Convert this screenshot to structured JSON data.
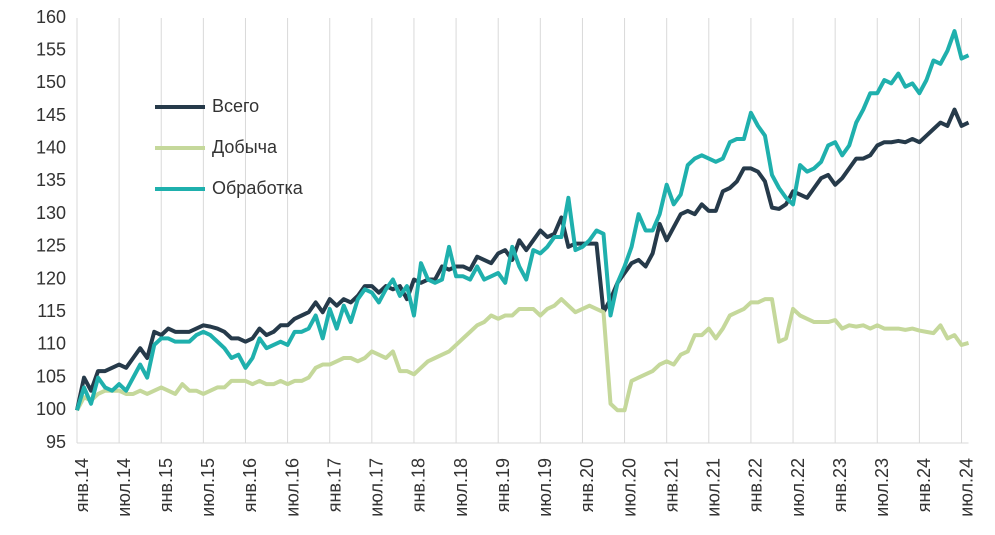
{
  "chart_data": {
    "type": "line",
    "categories": [
      "янв.14",
      null,
      null,
      null,
      null,
      null,
      "июл.14",
      null,
      null,
      null,
      null,
      null,
      "янв.15",
      null,
      null,
      null,
      null,
      null,
      "июл.15",
      null,
      null,
      null,
      null,
      null,
      "янв.16",
      null,
      null,
      null,
      null,
      null,
      "июл.16",
      null,
      null,
      null,
      null,
      null,
      "янв.17",
      null,
      null,
      null,
      null,
      null,
      "июл.17",
      null,
      null,
      null,
      null,
      null,
      "янв.18",
      null,
      null,
      null,
      null,
      null,
      "июл.18",
      null,
      null,
      null,
      null,
      null,
      "янв.19",
      null,
      null,
      null,
      null,
      null,
      "июл.19",
      null,
      null,
      null,
      null,
      null,
      "янв.20",
      null,
      null,
      null,
      null,
      null,
      "июл.20",
      null,
      null,
      null,
      null,
      null,
      "янв.21",
      null,
      null,
      null,
      null,
      null,
      "июл.21",
      null,
      null,
      null,
      null,
      null,
      "янв.22",
      null,
      null,
      null,
      null,
      null,
      "июл.22",
      null,
      null,
      null,
      null,
      null,
      "янв.23",
      null,
      null,
      null,
      null,
      null,
      "июл.23",
      null,
      null,
      null,
      null,
      null,
      "янв.24",
      null,
      null,
      null,
      null,
      null,
      "июл.24",
      null
    ],
    "series": [
      {
        "name": "Всего",
        "color": "#263a4a",
        "values": [
          100,
          105,
          103,
          106,
          106,
          106.5,
          107,
          106.5,
          108,
          109.5,
          108,
          112,
          111.5,
          112.5,
          112,
          112,
          112,
          112.5,
          113,
          112.8,
          112.5,
          112,
          111,
          111,
          110.5,
          111,
          112.5,
          111.5,
          112,
          113,
          113,
          114,
          114.5,
          115,
          116.5,
          115,
          117,
          116,
          117,
          116.5,
          117.5,
          119,
          119,
          118,
          119,
          118.5,
          119,
          117,
          120,
          119.5,
          120,
          120,
          122,
          121.5,
          122,
          122,
          121.5,
          123.5,
          123,
          122.5,
          124,
          124.5,
          123,
          126,
          124.5,
          126,
          127.5,
          126.5,
          127,
          129.5,
          125,
          125.5,
          125.5,
          125.5,
          125.5,
          115,
          117,
          119.5,
          121,
          122.5,
          123,
          122,
          124,
          128.5,
          126,
          128,
          130,
          130.5,
          130,
          131.5,
          130.5,
          130.5,
          133.5,
          134,
          135,
          137,
          137,
          136.5,
          135,
          131,
          130.8,
          131.5,
          133.5,
          133,
          132.5,
          134,
          135.5,
          136,
          134.5,
          135.5,
          137,
          138.5,
          138.5,
          139,
          140.5,
          141,
          141,
          141.2,
          141,
          141.5,
          141,
          142,
          143,
          144,
          143.5,
          146,
          143.5,
          144
        ]
      },
      {
        "name": "Добыча",
        "color": "#c5d89b",
        "values": [
          100,
          102,
          101.5,
          102.5,
          103,
          103,
          103,
          102.5,
          102.5,
          103,
          102.5,
          103,
          103.5,
          103,
          102.5,
          104,
          103,
          103,
          102.5,
          103,
          103.5,
          103.5,
          104.5,
          104.5,
          104.5,
          104,
          104.5,
          104,
          104,
          104.5,
          104,
          104.5,
          104.5,
          105,
          106.5,
          107,
          107,
          107.5,
          108,
          108,
          107.5,
          108,
          109,
          108.5,
          108,
          109,
          106,
          106,
          105.5,
          106.5,
          107.5,
          108,
          108.5,
          109,
          110,
          111,
          112,
          113,
          113.5,
          114.5,
          114,
          114.5,
          114.5,
          115.5,
          115.5,
          115.5,
          114.5,
          115.5,
          116,
          117,
          116,
          115,
          115.5,
          116,
          115.5,
          115,
          101,
          100,
          100,
          104.5,
          105,
          105.5,
          106,
          107,
          107.5,
          107,
          108.5,
          109,
          111.5,
          111.5,
          112.5,
          111,
          112.5,
          114.5,
          115,
          115.5,
          116.5,
          116.5,
          117,
          117,
          110.5,
          111,
          115.5,
          114.5,
          114,
          113.5,
          113.5,
          113.5,
          113.8,
          112.5,
          113,
          112.8,
          113,
          112.5,
          113,
          112.5,
          112.5,
          112.5,
          112.3,
          112.5,
          112.2,
          112,
          111.8,
          113,
          111,
          111.5,
          110,
          110.3
        ]
      },
      {
        "name": "Обработка",
        "color": "#1fb0ad",
        "values": [
          100,
          103.5,
          101,
          105,
          103.5,
          103,
          104,
          103,
          105,
          107,
          105,
          110,
          111,
          111,
          110.5,
          110.5,
          110.5,
          111.5,
          112,
          111.5,
          110.5,
          109.5,
          108,
          108.5,
          106.5,
          108,
          111,
          109.5,
          110,
          110.5,
          110,
          112,
          112,
          112.5,
          114.5,
          111,
          115.5,
          112.5,
          116,
          113.5,
          117,
          118.5,
          118,
          116.5,
          118.5,
          120,
          117.5,
          119,
          114.5,
          122.5,
          120,
          119.5,
          120,
          125,
          120.5,
          120.5,
          120,
          122,
          120,
          120.5,
          121,
          119.5,
          125,
          122,
          120,
          124.5,
          124,
          125,
          126.5,
          126.5,
          132.5,
          124.5,
          125,
          126,
          127.5,
          127,
          114.5,
          119.5,
          122,
          125,
          130,
          127.5,
          127.5,
          130,
          134.5,
          131.5,
          133,
          137.5,
          138.5,
          139,
          138.5,
          138,
          138.5,
          141,
          141.5,
          141.5,
          145.5,
          143.5,
          142,
          136,
          134,
          132.5,
          131.5,
          137.5,
          136.5,
          137,
          138,
          140.5,
          141,
          139,
          140.5,
          144,
          146,
          148.5,
          148.5,
          150.5,
          150,
          151.5,
          149.5,
          150,
          148.5,
          150.5,
          153.5,
          153,
          155,
          158,
          153.8,
          154.3
        ]
      }
    ],
    "ylim": [
      95,
      160
    ],
    "yticks": [
      95,
      100,
      105,
      110,
      115,
      120,
      125,
      130,
      135,
      140,
      145,
      150,
      155,
      160
    ],
    "grid": "x",
    "legend": "upper left"
  }
}
